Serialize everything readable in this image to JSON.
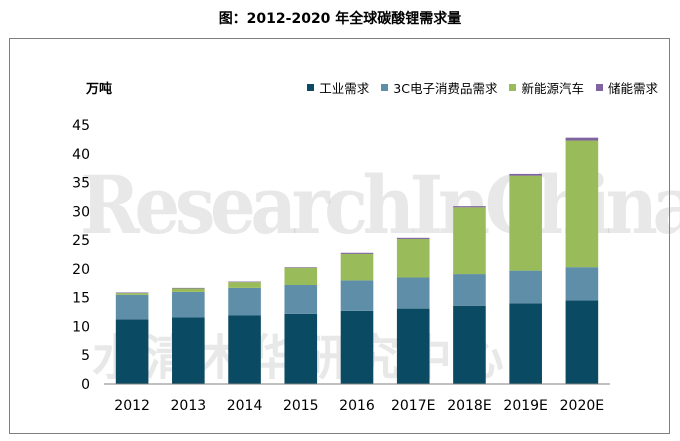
{
  "title": "图：2012-2020 年全球碳酸锂需求量",
  "watermark": {
    "line1": "ResearchInChina",
    "line2": "水清木华研究中心"
  },
  "chart_data": {
    "type": "bar",
    "stacked": true,
    "ylabel": "万吨",
    "ylim": [
      0,
      45
    ],
    "yticks": [
      0,
      5,
      10,
      15,
      20,
      25,
      30,
      35,
      40,
      45
    ],
    "grid": false,
    "legend_position": "top-right",
    "categories": [
      "2012",
      "2013",
      "2014",
      "2015",
      "2016",
      "2017E",
      "2018E",
      "2019E",
      "2020E"
    ],
    "series": [
      {
        "name": "工业需求",
        "color": "#0b4a63",
        "values": [
          11.2,
          11.6,
          11.9,
          12.2,
          12.7,
          13.1,
          13.6,
          14.0,
          14.5
        ]
      },
      {
        "name": "3C电子消费品需求",
        "color": "#5f8fa8",
        "values": [
          4.3,
          4.4,
          4.8,
          5.0,
          5.3,
          5.4,
          5.5,
          5.7,
          5.8
        ]
      },
      {
        "name": "新能源汽车",
        "color": "#9abb59",
        "values": [
          0.3,
          0.6,
          1.0,
          3.0,
          4.6,
          6.7,
          11.6,
          16.5,
          22.0
        ]
      },
      {
        "name": "储能需求",
        "color": "#8064a2",
        "values": [
          0.1,
          0.1,
          0.1,
          0.1,
          0.2,
          0.2,
          0.2,
          0.3,
          0.5
        ]
      }
    ]
  }
}
